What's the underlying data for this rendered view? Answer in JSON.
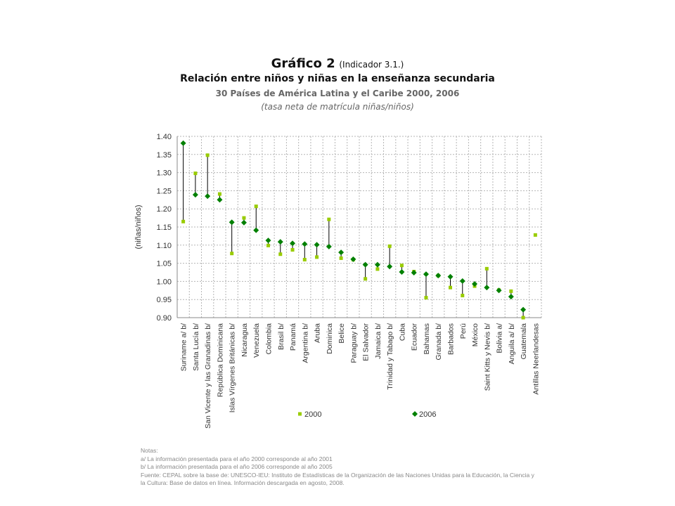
{
  "header": {
    "chart_number": "Gráfico 2",
    "indicator": "(Indicador 3.1.)",
    "title": "Relación entre niños y niñas en la enseñanza secundaria",
    "subtitle": "30 Países de América Latina y el Caribe 2000, 2006",
    "measure": "(tasa neta de matrícula niñas/niños)"
  },
  "chart_data": {
    "type": "scatter",
    "ylabel": "(niñas/niños)",
    "ylim": [
      0.9,
      1.4
    ],
    "yticks": [
      "1.40",
      "1.35",
      "1.30",
      "1.25",
      "1.20",
      "1.15",
      "1.10",
      "1.05",
      "1.00",
      "0.95",
      "0.90"
    ],
    "grid": true,
    "legend_placement": "bottom",
    "categories": [
      "Suriname a/ b/",
      "Santa Lucía b/",
      "San Vicente y las Granadinas b/",
      "República Dominicana",
      "Islas Vírgenes Británicas b/",
      "Nicaragua",
      "Venezuela",
      "Colombia",
      "Brasil b/",
      "Panamá",
      "Argentina b/",
      "Aruba",
      "Dominica",
      "Belice",
      "Paraguay b/",
      "El Salvador",
      "Jamaica b/",
      "Trinidad y Tabago b/",
      "Cuba",
      "Ecuador",
      "Bahamas",
      "Granada b/",
      "Barbados",
      "Perú",
      "México",
      "Saint Kitts y Nevis b/",
      "Bolivia a/",
      "Anguila a/ b/",
      "Guatemala",
      "Antillas Neerlandesas"
    ],
    "series": [
      {
        "name": "2000",
        "color": "#99cc00",
        "marker": "square",
        "values": [
          1.165,
          1.298,
          1.348,
          1.241,
          1.077,
          1.175,
          1.207,
          1.099,
          1.075,
          1.087,
          1.06,
          1.067,
          1.171,
          1.064,
          1.06,
          1.007,
          1.034,
          1.097,
          1.044,
          1.027,
          0.955,
          1.016,
          0.983,
          0.961,
          0.987,
          1.035,
          0.976,
          0.973,
          0.9,
          1.128
        ]
      },
      {
        "name": "2006",
        "color": "#008000",
        "marker": "diamond",
        "values": [
          1.381,
          1.239,
          1.235,
          1.225,
          1.163,
          1.162,
          1.141,
          1.113,
          1.109,
          1.105,
          1.103,
          1.101,
          1.096,
          1.08,
          1.061,
          1.046,
          1.046,
          1.041,
          1.026,
          1.024,
          1.02,
          1.016,
          1.013,
          1.001,
          0.993,
          0.983,
          0.975,
          0.958,
          0.922,
          null
        ]
      }
    ]
  },
  "notes": {
    "heading": "Notas:",
    "a": "a/ La información presentada para el año 2000 corresponde al año 2001",
    "b": "b/ La información presentada para el año 2006 corresponde al año 2005",
    "source": "Fuente: CEPAL sobre la base de: UNESCO-IEU: Instituto de Estadísticas de la Organización de las Naciones Unidas para la Educación, la Ciencia y la Cultura: Base de datos en línea. Información descargada en agosto, 2008."
  }
}
